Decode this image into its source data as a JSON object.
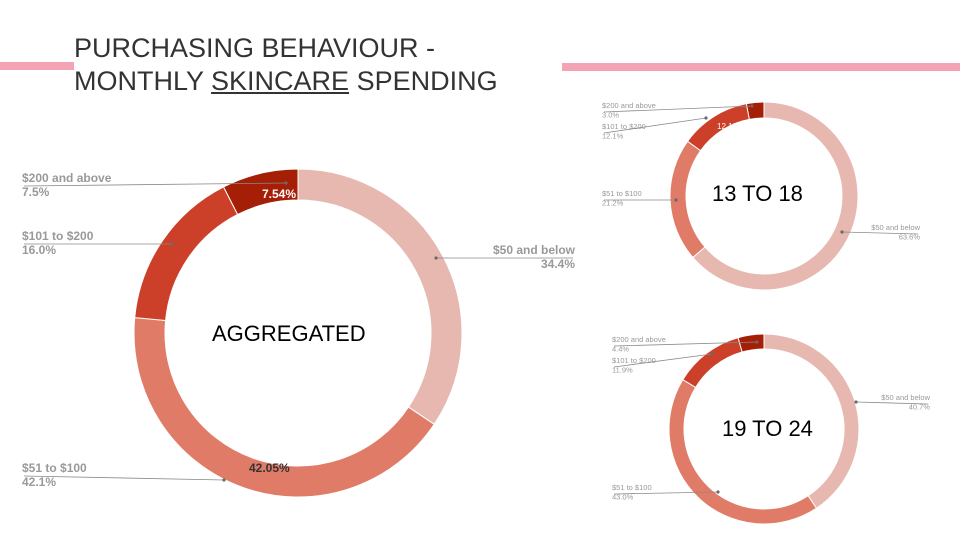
{
  "slide": {
    "title_line1": "PURCHASING BEHAVIOUR -",
    "title_line2_pre": "MONTHLY ",
    "title_line2_underlined": "SKINCARE",
    "title_line2_post": " SPENDING"
  },
  "colors": {
    "accent_bar": "#f4a3b4",
    "text_label": "#999999",
    "slice_50_below": "#e6b8b0",
    "slice_51_100": "#e07b67",
    "slice_101_200": "#cc3f28",
    "slice_200_above": "#a51e06"
  },
  "chart_data": [
    {
      "type": "pie",
      "name": "AGGREGATED",
      "slices": [
        {
          "key": "s50",
          "label": "$50 and below",
          "value": 34.4,
          "text": "34.4%",
          "color": "#e6b8b0"
        },
        {
          "key": "s51",
          "label": "$51 to $100",
          "value": 42.1,
          "text": "42.1%",
          "inner": "42.05%",
          "color": "#e07b67"
        },
        {
          "key": "s101",
          "label": "$101 to $200",
          "value": 16.0,
          "text": "16.0%",
          "color": "#cc3f28"
        },
        {
          "key": "s200",
          "label": "$200 and above",
          "value": 7.5,
          "text": "7.5%",
          "inner": "7.54%",
          "color": "#a51e06"
        }
      ]
    },
    {
      "type": "pie",
      "name": "13 TO 18",
      "slices": [
        {
          "key": "s50",
          "label": "$50 and below",
          "value": 63.6,
          "text": "63.6%",
          "color": "#e6b8b0"
        },
        {
          "key": "s51",
          "label": "$51 to $100",
          "value": 21.2,
          "text": "21.2%",
          "color": "#e07b67"
        },
        {
          "key": "s101",
          "label": "$101 to $200",
          "value": 12.1,
          "text": "12.1%",
          "inner": "12.12%",
          "color": "#cc3f28"
        },
        {
          "key": "s200",
          "label": "$200 and above",
          "value": 3.0,
          "text": "3.0%",
          "color": "#a51e06"
        }
      ]
    },
    {
      "type": "pie",
      "name": "19 TO 24",
      "slices": [
        {
          "key": "s50",
          "label": "$50 and below",
          "value": 40.7,
          "text": "40.7%",
          "color": "#e6b8b0"
        },
        {
          "key": "s51",
          "label": "$51 to $100",
          "value": 43.0,
          "text": "43.0%",
          "color": "#e07b67"
        },
        {
          "key": "s101",
          "label": "$101 to $200",
          "value": 11.9,
          "text": "11.9%",
          "color": "#cc3f28"
        },
        {
          "key": "s200",
          "label": "$200 and above",
          "value": 4.4,
          "text": "4.4%",
          "color": "#a51e06"
        }
      ]
    }
  ]
}
